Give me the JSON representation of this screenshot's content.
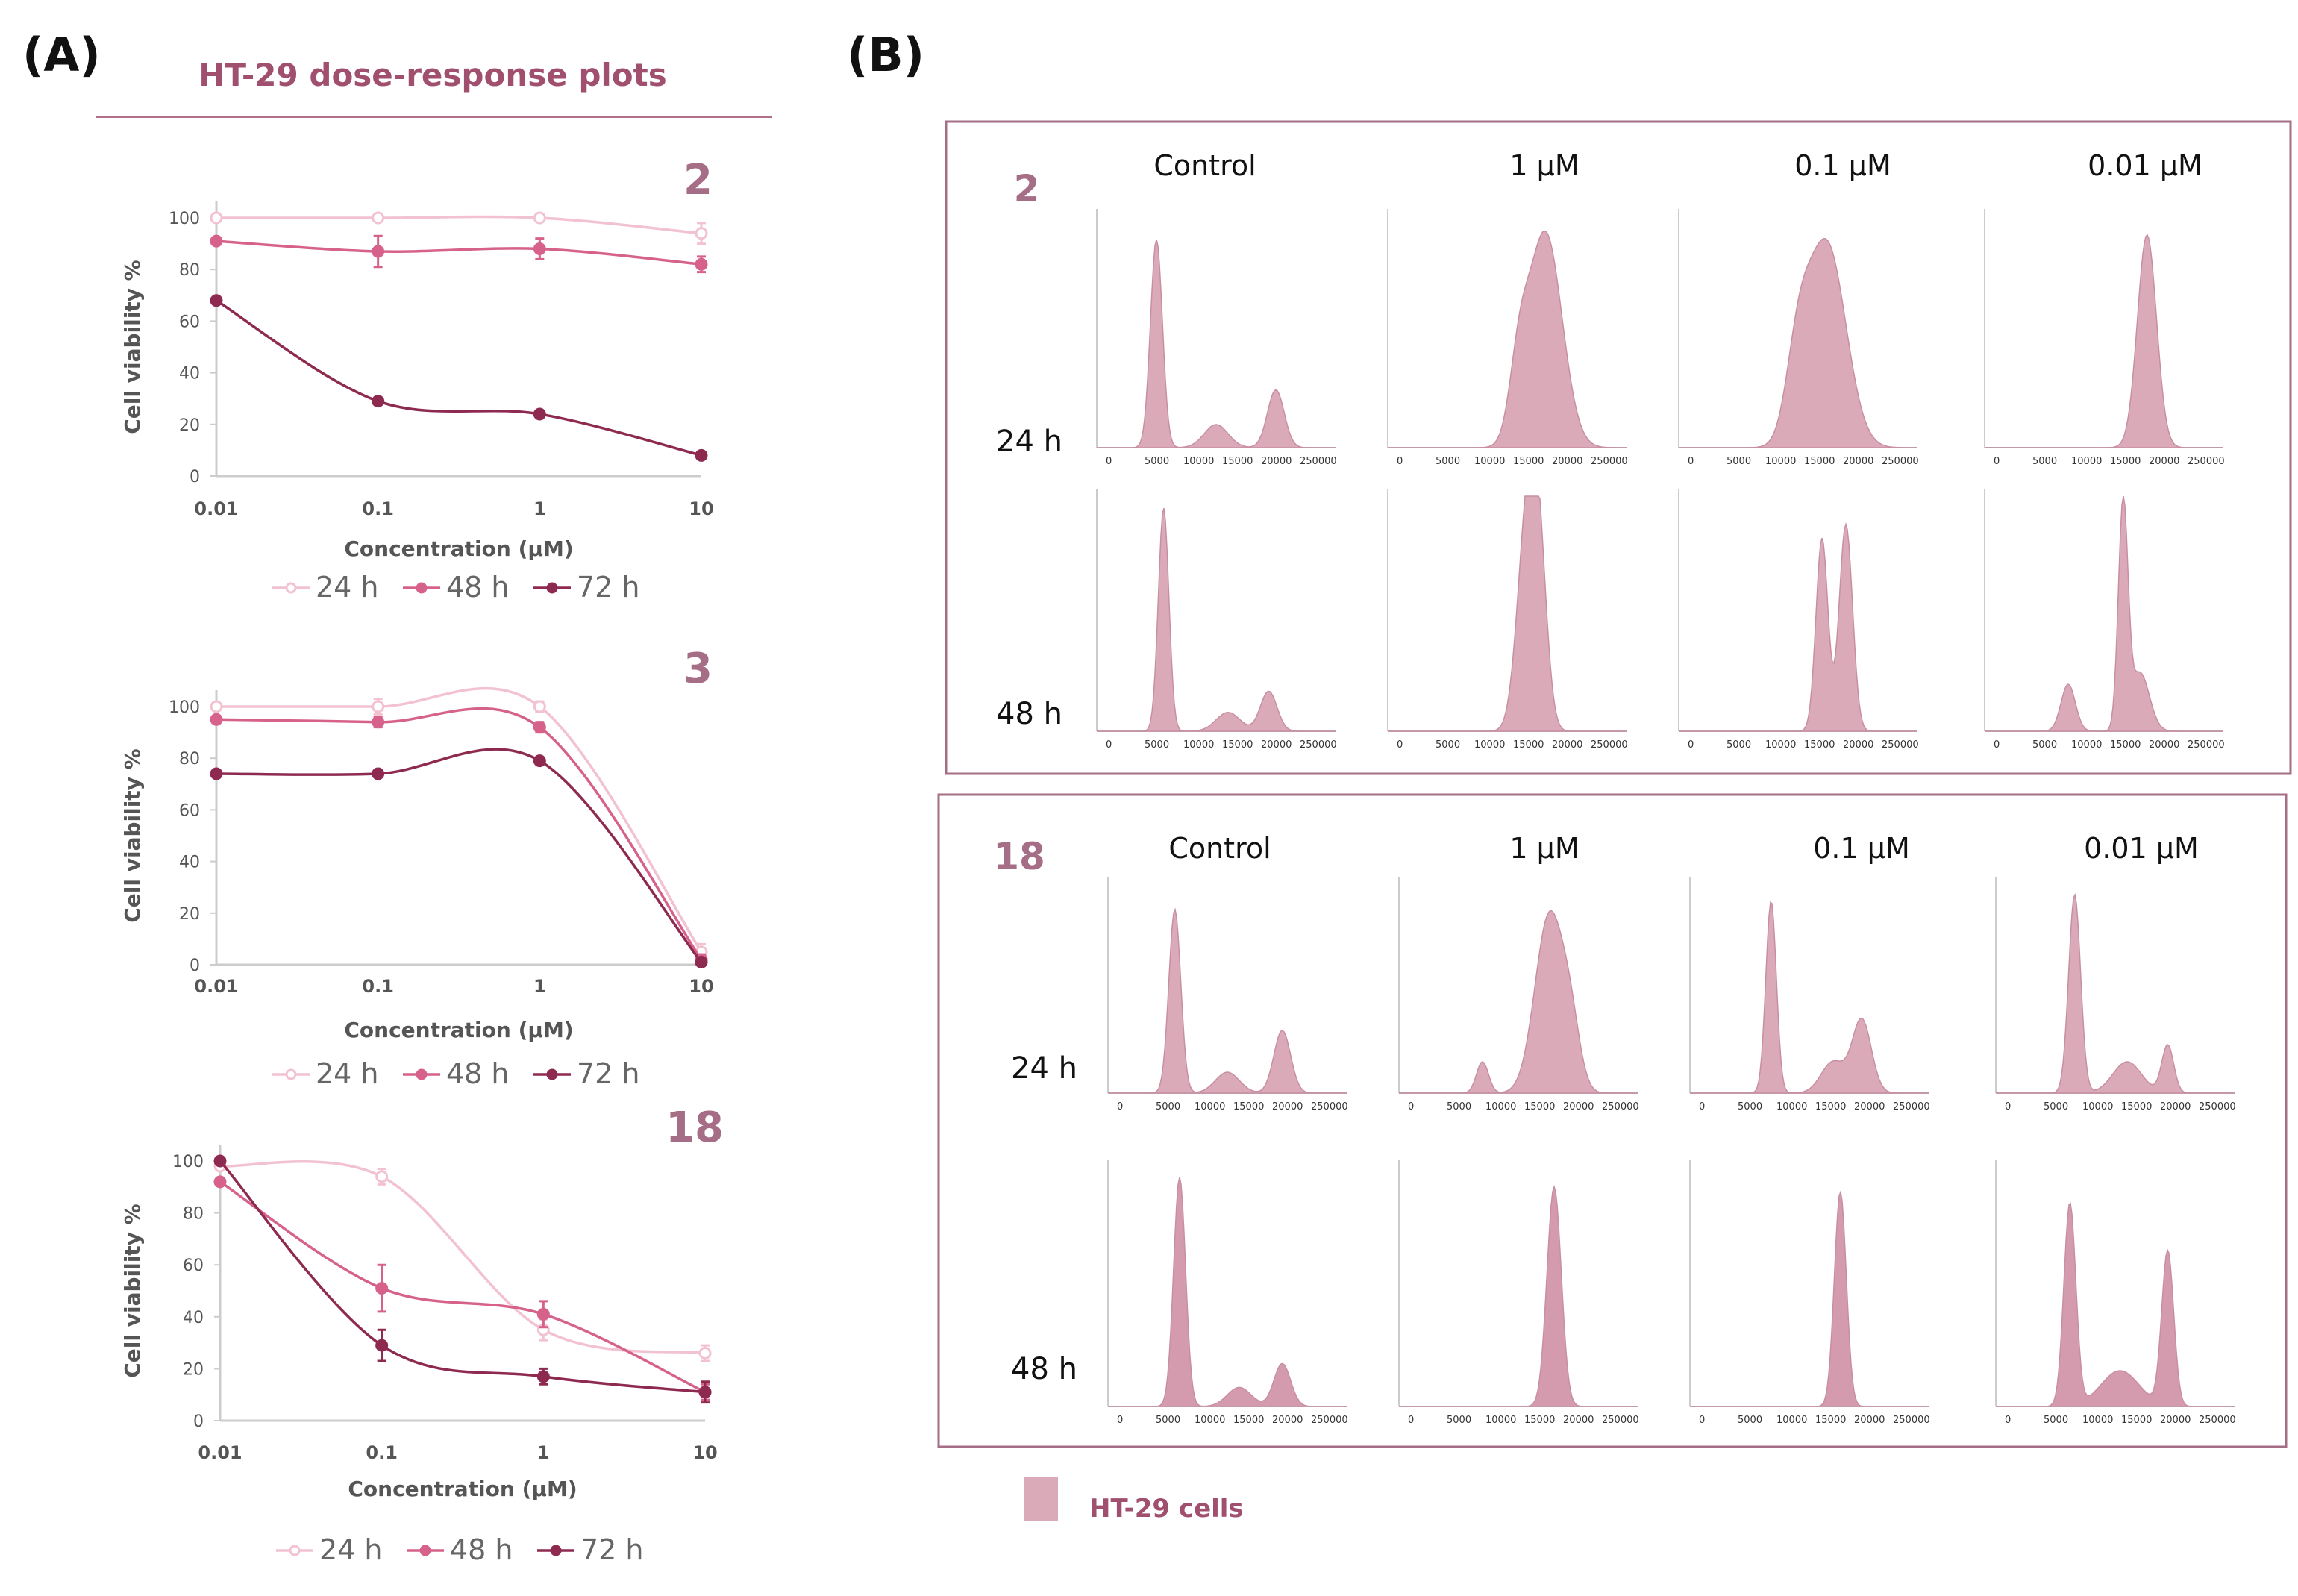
{
  "labels": {
    "panel_a": "(A)",
    "panel_b": "(B)",
    "a_title": "HT-29 dose-response plots",
    "legend_key": "HT-29 cells"
  },
  "colors": {
    "h24": "#f2c2d0",
    "h48": "#d6628c",
    "h72": "#8e2a50",
    "hist_fill": "#dbaab9",
    "hist_stroke": "#c88ea2",
    "hist_fill_dark": "#d49aae",
    "frame": "#a66d86",
    "axis": "#cccccc"
  },
  "chart_data": [
    {
      "type": "line",
      "compound": "2",
      "xscale": "log",
      "x": [
        0.01,
        0.1,
        1,
        10
      ],
      "xticks": [
        "0.01",
        "0.1",
        "1",
        "10"
      ],
      "yticks": [
        "0",
        "20",
        "40",
        "60",
        "80",
        "100"
      ],
      "ylim": [
        0,
        100
      ],
      "ylabel": "Cell viability %",
      "xlabel": "Concentration (µM)",
      "series": [
        {
          "name": "24 h",
          "values": [
            100,
            100,
            100,
            94
          ],
          "err": [
            0,
            0,
            0,
            4
          ]
        },
        {
          "name": "48 h",
          "values": [
            91,
            87,
            88,
            82
          ],
          "err": [
            0,
            6,
            4,
            3
          ]
        },
        {
          "name": "72 h",
          "values": [
            68,
            29,
            24,
            8
          ],
          "err": [
            0,
            0,
            0,
            0
          ]
        }
      ]
    },
    {
      "type": "line",
      "compound": "3",
      "xscale": "log",
      "x": [
        0.01,
        0.1,
        1,
        10
      ],
      "xticks": [
        "0.01",
        "0.1",
        "1",
        "10"
      ],
      "yticks": [
        "0",
        "20",
        "40",
        "60",
        "80",
        "100"
      ],
      "ylim": [
        0,
        100
      ],
      "ylabel": "Cell viability %",
      "xlabel": "Concentration (µM)",
      "series": [
        {
          "name": "24 h",
          "values": [
            100,
            100,
            100,
            5
          ],
          "err": [
            0,
            3,
            2,
            3
          ]
        },
        {
          "name": "48 h",
          "values": [
            95,
            94,
            92,
            2
          ],
          "err": [
            0,
            2,
            2,
            2
          ]
        },
        {
          "name": "72 h",
          "values": [
            74,
            74,
            79,
            1
          ],
          "err": [
            0,
            0,
            0,
            0
          ]
        }
      ]
    },
    {
      "type": "line",
      "compound": "18",
      "xscale": "log",
      "x": [
        0.01,
        0.1,
        1,
        10
      ],
      "xticks": [
        "0.01",
        "0.1",
        "1",
        "10"
      ],
      "yticks": [
        "0",
        "20",
        "40",
        "60",
        "80",
        "100"
      ],
      "ylim": [
        0,
        100
      ],
      "ylabel": "Cell viability %",
      "xlabel": "Concentration (µM)",
      "series": [
        {
          "name": "24 h",
          "values": [
            98,
            94,
            35,
            26
          ],
          "err": [
            0,
            3,
            4,
            3
          ]
        },
        {
          "name": "48 h",
          "values": [
            92,
            51,
            41,
            11
          ],
          "err": [
            0,
            9,
            5,
            3
          ]
        },
        {
          "name": "72 h",
          "values": [
            100,
            29,
            17,
            11
          ],
          "err": [
            0,
            6,
            3,
            4
          ]
        }
      ]
    }
  ],
  "histograms": {
    "columns": [
      "Control",
      "1 µM",
      "0.1 µM",
      "0.01 µM"
    ],
    "rows": [
      "24 h",
      "48 h"
    ],
    "xticks": [
      "0",
      "5000",
      "10000",
      "15000",
      "20000",
      "250000"
    ],
    "groups": [
      {
        "compound": "2",
        "cells": [
          [
            [
              [
                0.25,
                0.9,
                0.025
              ],
              [
                0.5,
                0.1,
                0.05
              ],
              [
                0.75,
                0.25,
                0.035
              ]
            ],
            [
              [
                0.66,
                0.93,
                0.07
              ],
              [
                0.55,
                0.3,
                0.04
              ]
            ],
            [
              [
                0.62,
                0.88,
                0.08
              ],
              [
                0.5,
                0.35,
                0.05
              ]
            ],
            [
              [
                0.68,
                0.92,
                0.04
              ]
            ]
          ],
          [
            [
              [
                0.28,
                0.95,
                0.022
              ],
              [
                0.55,
                0.08,
                0.05
              ],
              [
                0.72,
                0.17,
                0.035
              ]
            ],
            [
              [
                0.58,
                0.8,
                0.04
              ],
              [
                0.63,
                0.72,
                0.035
              ]
            ],
            [
              [
                0.6,
                0.82,
                0.025
              ],
              [
                0.7,
                0.88,
                0.028
              ]
            ],
            [
              [
                0.58,
                0.95,
                0.02
              ],
              [
                0.35,
                0.2,
                0.03
              ],
              [
                0.65,
                0.25,
                0.04
              ]
            ]
          ]
        ]
      },
      {
        "compound": "18",
        "cells": [
          [
            [
              [
                0.28,
                0.88,
                0.025
              ],
              [
                0.5,
                0.1,
                0.05
              ],
              [
                0.73,
                0.3,
                0.035
              ]
            ],
            [
              [
                0.63,
                0.85,
                0.06
              ],
              [
                0.35,
                0.15,
                0.025
              ],
              [
                0.72,
                0.25,
                0.04
              ]
            ],
            [
              [
                0.34,
                0.92,
                0.022
              ],
              [
                0.6,
                0.15,
                0.05
              ],
              [
                0.72,
                0.35,
                0.04
              ]
            ],
            [
              [
                0.33,
                0.95,
                0.025
              ],
              [
                0.55,
                0.15,
                0.06
              ],
              [
                0.72,
                0.23,
                0.025
              ]
            ]
          ],
          [
            [
              [
                0.3,
                0.96,
                0.025
              ],
              [
                0.55,
                0.08,
                0.05
              ],
              [
                0.73,
                0.18,
                0.035
              ]
            ],
            [
              [
                0.65,
                0.92,
                0.03
              ]
            ],
            [
              [
                0.63,
                0.9,
                0.025
              ]
            ],
            [
              [
                0.31,
                0.85,
                0.025
              ],
              [
                0.52,
                0.15,
                0.08
              ],
              [
                0.72,
                0.65,
                0.025
              ]
            ]
          ]
        ]
      }
    ]
  }
}
